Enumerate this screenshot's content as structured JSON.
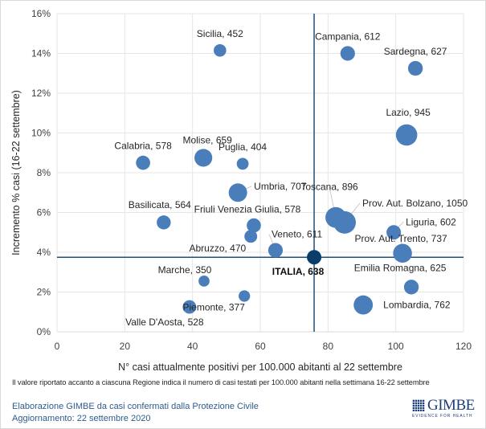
{
  "chart_data": {
    "type": "scatter",
    "subtype": "bubble",
    "title": "",
    "xlabel": "N° casi attualmente positivi per 100.000 abitanti al 22 settembre",
    "ylabel": "Incremento % casi (16-22 settembre)",
    "xlim": [
      0,
      120
    ],
    "ylim": [
      0,
      16
    ],
    "x_ticks": [
      "0",
      "20",
      "40",
      "60",
      "80",
      "100",
      "120"
    ],
    "y_ticks": [
      "0%",
      "2%",
      "4%",
      "6%",
      "8%",
      "10%",
      "12%",
      "14%",
      "16%"
    ],
    "grid": true,
    "legend": "none",
    "bubble_size_meaning": "casi testati per 100.000 abitanti (16-22 settembre)",
    "reference_lines": {
      "x": 75.9,
      "y": 3.75,
      "label": "ITALIA"
    },
    "colors": {
      "bubble": "#4a7ebb",
      "italia": "#0b3d6b",
      "ref_line": "#1f4e79",
      "grid": "#e6e6e6"
    },
    "points": [
      {
        "name": "Sicilia",
        "x": 48.1,
        "y": 14.15,
        "tested": 452,
        "label": "Sicilia, 452"
      },
      {
        "name": "Campania",
        "x": 85.8,
        "y": 14.0,
        "tested": 612,
        "label": "Campania, 612"
      },
      {
        "name": "Sardegna",
        "x": 105.8,
        "y": 13.25,
        "tested": 627,
        "label": "Sardegna, 627"
      },
      {
        "name": "Lazio",
        "x": 103.2,
        "y": 9.9,
        "tested": 945,
        "label": "Lazio, 945"
      },
      {
        "name": "Calabria",
        "x": 25.4,
        "y": 8.5,
        "tested": 578,
        "label": "Calabria, 578"
      },
      {
        "name": "Molise",
        "x": 43.2,
        "y": 8.75,
        "tested": 659,
        "label": "Molise, 659"
      },
      {
        "name": "Puglia",
        "x": 54.8,
        "y": 8.45,
        "tested": 404,
        "label": "Puglia, 404"
      },
      {
        "name": "Umbria",
        "x": 53.4,
        "y": 7.0,
        "tested": 707,
        "label": "Umbria, 707"
      },
      {
        "name": "Basilicata",
        "x": 31.5,
        "y": 5.5,
        "tested": 564,
        "label": "Basilicata, 564"
      },
      {
        "name": "Friuli Venezia Giulia",
        "x": 58.1,
        "y": 5.35,
        "tested": 578,
        "label": "Friuli Venezia Giulia, 578"
      },
      {
        "name": "Abruzzo",
        "x": 57.2,
        "y": 4.8,
        "tested": 470,
        "label": "Abruzzo, 470"
      },
      {
        "name": "Veneto",
        "x": 64.5,
        "y": 4.1,
        "tested": 611,
        "label": "Veneto, 611"
      },
      {
        "name": "Toscana",
        "x": 82.3,
        "y": 5.75,
        "tested": 896,
        "label": "Toscana, 896"
      },
      {
        "name": "Prov. Aut. Bolzano",
        "x": 84.9,
        "y": 5.5,
        "tested": 1050,
        "label": "Prov. Aut. Bolzano, 1050"
      },
      {
        "name": "Liguria",
        "x": 99.4,
        "y": 5.0,
        "tested": 602,
        "label": "Liguria, 602"
      },
      {
        "name": "Prov. Aut. Trento",
        "x": 102.0,
        "y": 3.95,
        "tested": 737,
        "label": "Prov. Aut. Trento, 737"
      },
      {
        "name": "ITALIA",
        "x": 75.9,
        "y": 3.75,
        "tested": 638,
        "label": "ITALIA, 638",
        "highlight": true
      },
      {
        "name": "Marche",
        "x": 43.4,
        "y": 2.55,
        "tested": 350,
        "label": "Marche, 350"
      },
      {
        "name": "Piemonte",
        "x": 55.3,
        "y": 1.8,
        "tested": 377,
        "label": "Piemonte, 377"
      },
      {
        "name": "Valle D'Aosta",
        "x": 39.1,
        "y": 1.25,
        "tested": 528,
        "label": "Valle D'Aosta, 528"
      },
      {
        "name": "Emilia Romagna",
        "x": 104.6,
        "y": 2.25,
        "tested": 625,
        "label": "Emilia Romagna, 625"
      },
      {
        "name": "Lombardia",
        "x": 90.4,
        "y": 1.35,
        "tested": 762,
        "label": "Lombardia, 762"
      }
    ]
  },
  "footer": {
    "note": "Il valore riportato accanto a ciascuna Regione indica il numero di casi testati per 100.000 abitanti nella settimana 16-22 settembre",
    "source": "Elaborazione GIMBE da casi confermati dalla Protezione Civile",
    "updated": "Aggiornamento:  22 settembre 2020",
    "logo_name": "GIMBE",
    "logo_tagline": "EVIDENCE FOR HEALTH"
  }
}
